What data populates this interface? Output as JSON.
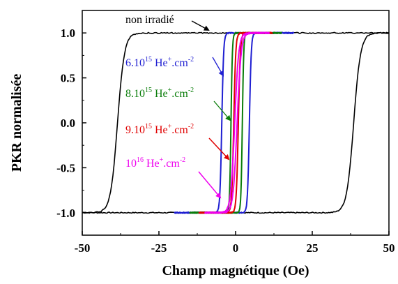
{
  "chart_data": {
    "type": "line",
    "title": "",
    "xlabel": "Champ magnétique (Oe)",
    "ylabel": "PKR normalisée",
    "xlim": [
      -50,
      50
    ],
    "ylim": [
      -1.25,
      1.25
    ],
    "xticks": [
      {
        "value": -50,
        "label": "-50"
      },
      {
        "value": -25,
        "label": "-25"
      },
      {
        "value": 0,
        "label": "0"
      },
      {
        "value": 25,
        "label": "25"
      },
      {
        "value": 50,
        "label": "50"
      }
    ],
    "yticks": [
      {
        "value": -1.0,
        "label": "-1.0"
      },
      {
        "value": -0.5,
        "label": "-0.5"
      },
      {
        "value": 0.0,
        "label": "0.0"
      },
      {
        "value": 0.5,
        "label": "0.5"
      },
      {
        "value": 1.0,
        "label": "1.0"
      }
    ],
    "series": [
      {
        "color": "#000000",
        "x_range": [
          -50,
          50
        ],
        "loop": {
          "descending_switch": -38.5,
          "ascending_switch": 38.5,
          "width": 4.5
        },
        "label": {
          "text": "non irradié",
          "sup": "",
          "suffix": "",
          "sup2": ""
        }
      },
      {
        "color": "#1f1fd2",
        "x_range": [
          -20,
          19
        ],
        "loop": {
          "descending_switch": -4.5,
          "ascending_switch": 4.5,
          "width": 1.2
        },
        "label": {
          "text": "6.10",
          "sup": "15",
          "suffix": " He",
          "sup2": "+",
          "tail": ".cm",
          "sup3": "-2"
        }
      },
      {
        "color": "#0a7d0a",
        "x_range": [
          -15,
          15
        ],
        "loop": {
          "descending_switch": -1.5,
          "ascending_switch": 2.2,
          "width": 0.9
        },
        "label": {
          "text": "8.10",
          "sup": "15",
          "suffix": " He",
          "sup2": "+",
          "tail": ".cm",
          "sup3": "-2"
        }
      },
      {
        "color": "#e00000",
        "x_range": [
          -12,
          12
        ],
        "loop": {
          "descending_switch": -0.6,
          "ascending_switch": 0.9,
          "width": 1.3
        },
        "label": {
          "text": "9.10",
          "sup": "15",
          "suffix": " He",
          "sup2": "+",
          "tail": ".cm",
          "sup3": "-2"
        }
      },
      {
        "color": "#ee00ee",
        "x_range": [
          -10,
          11
        ],
        "loop": {
          "descending_switch": -0.3,
          "ascending_switch": 0.5,
          "width": 2.6
        },
        "label": {
          "text": "10",
          "sup": "16",
          "suffix": " He",
          "sup2": "+",
          "tail": ".cm",
          "sup3": "-2"
        }
      }
    ],
    "grid": false,
    "legend": "annotations with arrows"
  }
}
